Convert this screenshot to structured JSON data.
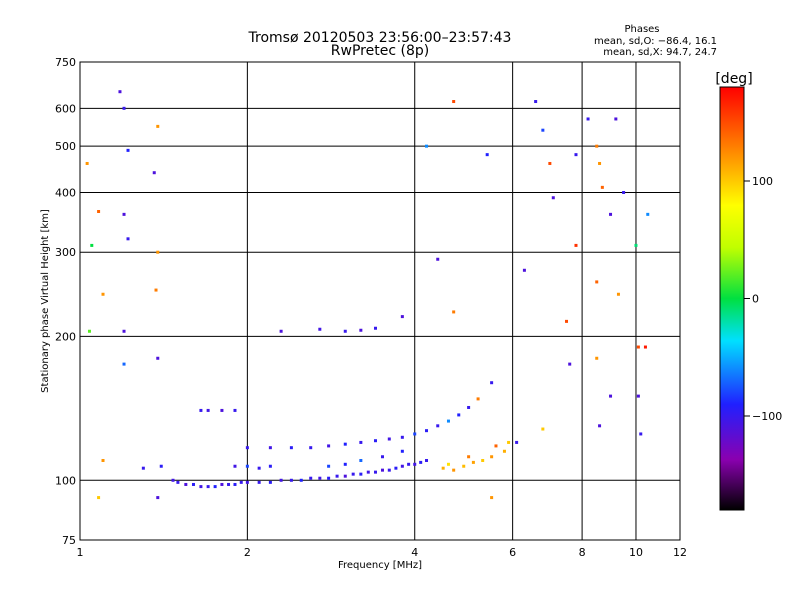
{
  "chart_data": {
    "type": "scatter",
    "title": "Tromsø 20120503 23:56:00–23:57:43",
    "subtitle": "RwPretec (8p)",
    "xlabel": "Frequency [MHz]",
    "ylabel": "Stationary phase Virtual Height [km]",
    "xscale": "log",
    "yscale": "log",
    "xlim": [
      1,
      12
    ],
    "ylim": [
      75,
      750
    ],
    "xticks": [
      1,
      2,
      4,
      6,
      8,
      10,
      12
    ],
    "xtick_labels": [
      "1",
      "2",
      "4",
      "6",
      "8",
      "10",
      "12"
    ],
    "yticks": [
      75,
      100,
      200,
      300,
      400,
      500,
      600,
      750
    ],
    "ytick_labels": [
      "75",
      "100",
      "200",
      "300",
      "400",
      "500",
      "600",
      "750"
    ],
    "x_gridlines": [
      2,
      4,
      6,
      8,
      10
    ],
    "y_gridlines": [
      100,
      200,
      300,
      400,
      500,
      600
    ],
    "grid": true,
    "annotation": {
      "heading": "Phases",
      "line1": "mean, sd,O: −86.4, 16.1",
      "line2": "mean, sd,X:  94.7, 24.7"
    },
    "colorbar": {
      "label": "[deg]",
      "range": [
        -180,
        180
      ],
      "ticks": [
        100,
        0,
        -100
      ],
      "tick_labels": [
        "100",
        "0",
        "−100"
      ],
      "colormap": "rainbow (black→purple→blue→cyan→green→yellow→orange→red)"
    },
    "points": [
      {
        "f": 1.47,
        "h": 100,
        "p": -105
      },
      {
        "f": 1.5,
        "h": 99,
        "p": -100
      },
      {
        "f": 1.55,
        "h": 98,
        "p": -110
      },
      {
        "f": 1.6,
        "h": 98,
        "p": -95
      },
      {
        "f": 1.65,
        "h": 97,
        "p": -105
      },
      {
        "f": 1.7,
        "h": 97,
        "p": -100
      },
      {
        "f": 1.75,
        "h": 97,
        "p": -90
      },
      {
        "f": 1.8,
        "h": 98,
        "p": -110
      },
      {
        "f": 1.85,
        "h": 98,
        "p": -100
      },
      {
        "f": 1.9,
        "h": 98,
        "p": -95
      },
      {
        "f": 1.95,
        "h": 99,
        "p": -100
      },
      {
        "f": 2.0,
        "h": 99,
        "p": -105
      },
      {
        "f": 2.1,
        "h": 99,
        "p": -100
      },
      {
        "f": 2.2,
        "h": 99,
        "p": -95
      },
      {
        "f": 2.3,
        "h": 100,
        "p": -105
      },
      {
        "f": 2.4,
        "h": 100,
        "p": -100
      },
      {
        "f": 2.5,
        "h": 100,
        "p": -90
      },
      {
        "f": 2.6,
        "h": 101,
        "p": -100
      },
      {
        "f": 2.7,
        "h": 101,
        "p": -105
      },
      {
        "f": 2.8,
        "h": 101,
        "p": -95
      },
      {
        "f": 2.9,
        "h": 102,
        "p": -100
      },
      {
        "f": 3.0,
        "h": 102,
        "p": -110
      },
      {
        "f": 3.1,
        "h": 103,
        "p": -100
      },
      {
        "f": 3.2,
        "h": 103,
        "p": -95
      },
      {
        "f": 3.3,
        "h": 104,
        "p": -105
      },
      {
        "f": 3.4,
        "h": 104,
        "p": -100
      },
      {
        "f": 3.5,
        "h": 105,
        "p": -110
      },
      {
        "f": 3.6,
        "h": 105,
        "p": -100
      },
      {
        "f": 3.7,
        "h": 106,
        "p": -95
      },
      {
        "f": 3.8,
        "h": 107,
        "p": -105
      },
      {
        "f": 3.9,
        "h": 108,
        "p": -100
      },
      {
        "f": 4.0,
        "h": 108,
        "p": -105
      },
      {
        "f": 4.1,
        "h": 109,
        "p": -95
      },
      {
        "f": 4.2,
        "h": 110,
        "p": -100
      },
      {
        "f": 1.3,
        "h": 106,
        "p": -100
      },
      {
        "f": 1.4,
        "h": 107,
        "p": -95
      },
      {
        "f": 1.9,
        "h": 107,
        "p": -105
      },
      {
        "f": 2.0,
        "h": 107,
        "p": -80
      },
      {
        "f": 2.1,
        "h": 106,
        "p": -100
      },
      {
        "f": 2.2,
        "h": 107,
        "p": -95
      },
      {
        "f": 2.8,
        "h": 107,
        "p": -80
      },
      {
        "f": 3.0,
        "h": 108,
        "p": -90
      },
      {
        "f": 3.2,
        "h": 110,
        "p": -70
      },
      {
        "f": 3.5,
        "h": 112,
        "p": -100
      },
      {
        "f": 3.8,
        "h": 115,
        "p": -90
      },
      {
        "f": 2.0,
        "h": 117,
        "p": -100
      },
      {
        "f": 2.2,
        "h": 117,
        "p": -105
      },
      {
        "f": 2.4,
        "h": 117,
        "p": -95
      },
      {
        "f": 2.6,
        "h": 117,
        "p": -100
      },
      {
        "f": 2.8,
        "h": 118,
        "p": -105
      },
      {
        "f": 3.0,
        "h": 119,
        "p": -90
      },
      {
        "f": 3.2,
        "h": 120,
        "p": -100
      },
      {
        "f": 3.4,
        "h": 121,
        "p": -95
      },
      {
        "f": 3.6,
        "h": 122,
        "p": -105
      },
      {
        "f": 3.8,
        "h": 123,
        "p": -100
      },
      {
        "f": 4.0,
        "h": 125,
        "p": -80
      },
      {
        "f": 4.2,
        "h": 127,
        "p": -95
      },
      {
        "f": 4.4,
        "h": 130,
        "p": -100
      },
      {
        "f": 4.6,
        "h": 133,
        "p": -60
      },
      {
        "f": 4.8,
        "h": 137,
        "p": -90
      },
      {
        "f": 5.0,
        "h": 142,
        "p": -100
      },
      {
        "f": 5.2,
        "h": 148,
        "p": 130
      },
      {
        "f": 5.5,
        "h": 160,
        "p": -100
      },
      {
        "f": 4.5,
        "h": 106,
        "p": 110
      },
      {
        "f": 4.7,
        "h": 105,
        "p": 120
      },
      {
        "f": 4.9,
        "h": 107,
        "p": 105
      },
      {
        "f": 5.1,
        "h": 109,
        "p": 115
      },
      {
        "f": 5.3,
        "h": 110,
        "p": 100
      },
      {
        "f": 5.5,
        "h": 112,
        "p": 120
      },
      {
        "f": 5.8,
        "h": 115,
        "p": 110
      },
      {
        "f": 4.6,
        "h": 108,
        "p": 90
      },
      {
        "f": 5.0,
        "h": 112,
        "p": 130
      },
      {
        "f": 5.6,
        "h": 118,
        "p": 140
      },
      {
        "f": 5.9,
        "h": 120,
        "p": 100
      },
      {
        "f": 1.65,
        "h": 140,
        "p": -100
      },
      {
        "f": 1.7,
        "h": 140,
        "p": -105
      },
      {
        "f": 1.8,
        "h": 140,
        "p": -110
      },
      {
        "f": 1.9,
        "h": 140,
        "p": -100
      },
      {
        "f": 1.18,
        "h": 650,
        "p": -110
      },
      {
        "f": 1.2,
        "h": 600,
        "p": -100
      },
      {
        "f": 1.22,
        "h": 490,
        "p": -90
      },
      {
        "f": 1.2,
        "h": 360,
        "p": -110
      },
      {
        "f": 1.22,
        "h": 320,
        "p": -100
      },
      {
        "f": 1.2,
        "h": 205,
        "p": -110
      },
      {
        "f": 1.2,
        "h": 175,
        "p": -70
      },
      {
        "f": 1.38,
        "h": 180,
        "p": -110
      },
      {
        "f": 1.36,
        "h": 440,
        "p": -110
      },
      {
        "f": 1.38,
        "h": 550,
        "p": 120
      },
      {
        "f": 1.38,
        "h": 300,
        "p": 120
      },
      {
        "f": 1.37,
        "h": 250,
        "p": 130
      },
      {
        "f": 1.03,
        "h": 460,
        "p": 120
      },
      {
        "f": 1.05,
        "h": 310,
        "p": 0
      },
      {
        "f": 1.08,
        "h": 365,
        "p": 140
      },
      {
        "f": 1.1,
        "h": 245,
        "p": 120
      },
      {
        "f": 1.04,
        "h": 205,
        "p": 20
      },
      {
        "f": 2.3,
        "h": 205,
        "p": -110
      },
      {
        "f": 2.7,
        "h": 207,
        "p": -105
      },
      {
        "f": 3.0,
        "h": 205,
        "p": -100
      },
      {
        "f": 3.2,
        "h": 206,
        "p": -110
      },
      {
        "f": 3.4,
        "h": 208,
        "p": -100
      },
      {
        "f": 3.8,
        "h": 220,
        "p": -110
      },
      {
        "f": 4.2,
        "h": 500,
        "p": -60
      },
      {
        "f": 4.4,
        "h": 290,
        "p": -110
      },
      {
        "f": 4.7,
        "h": 620,
        "p": 150
      },
      {
        "f": 4.7,
        "h": 225,
        "p": 130
      },
      {
        "f": 5.4,
        "h": 480,
        "p": -90
      },
      {
        "f": 6.3,
        "h": 275,
        "p": -110
      },
      {
        "f": 6.6,
        "h": 620,
        "p": -100
      },
      {
        "f": 6.8,
        "h": 540,
        "p": -80
      },
      {
        "f": 7.0,
        "h": 460,
        "p": 150
      },
      {
        "f": 7.1,
        "h": 390,
        "p": -110
      },
      {
        "f": 7.8,
        "h": 480,
        "p": -100
      },
      {
        "f": 7.8,
        "h": 310,
        "p": 160
      },
      {
        "f": 7.5,
        "h": 215,
        "p": 150
      },
      {
        "f": 8.2,
        "h": 570,
        "p": -100
      },
      {
        "f": 8.5,
        "h": 500,
        "p": 130
      },
      {
        "f": 8.6,
        "h": 460,
        "p": 120
      },
      {
        "f": 8.7,
        "h": 410,
        "p": 140
      },
      {
        "f": 9.0,
        "h": 360,
        "p": -110
      },
      {
        "f": 9.2,
        "h": 570,
        "p": -110
      },
      {
        "f": 9.5,
        "h": 400,
        "p": -100
      },
      {
        "f": 10.0,
        "h": 310,
        "p": -10
      },
      {
        "f": 10.5,
        "h": 360,
        "p": -60
      },
      {
        "f": 8.5,
        "h": 260,
        "p": 140
      },
      {
        "f": 9.3,
        "h": 245,
        "p": 120
      },
      {
        "f": 8.5,
        "h": 180,
        "p": 120
      },
      {
        "f": 9.0,
        "h": 150,
        "p": -110
      },
      {
        "f": 10.1,
        "h": 190,
        "p": 150
      },
      {
        "f": 10.2,
        "h": 125,
        "p": -100
      },
      {
        "f": 10.1,
        "h": 150,
        "p": -110
      },
      {
        "f": 7.6,
        "h": 175,
        "p": -110
      },
      {
        "f": 6.8,
        "h": 128,
        "p": 100
      },
      {
        "f": 6.1,
        "h": 120,
        "p": -100
      },
      {
        "f": 5.5,
        "h": 92,
        "p": 120
      },
      {
        "f": 1.38,
        "h": 92,
        "p": -110
      },
      {
        "f": 1.1,
        "h": 110,
        "p": 120
      },
      {
        "f": 1.08,
        "h": 92,
        "p": 100
      },
      {
        "f": 8.6,
        "h": 130,
        "p": -110
      },
      {
        "f": 10.4,
        "h": 190,
        "p": 170
      }
    ]
  }
}
